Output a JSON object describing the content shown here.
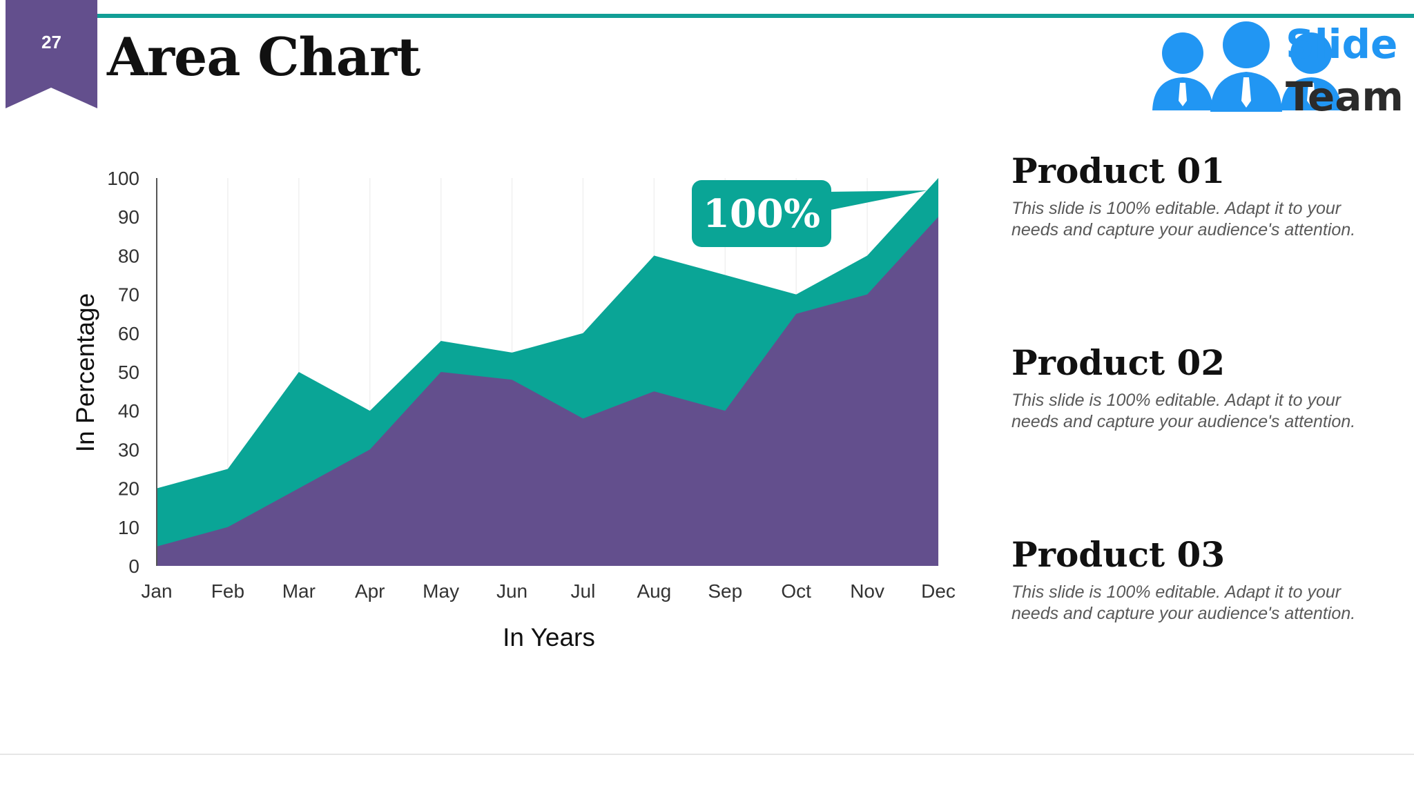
{
  "slide": {
    "number": "27",
    "title": "Area Chart"
  },
  "logo": {
    "line1": "Slide",
    "line2": "Team"
  },
  "colors": {
    "accent_teal": "#0aa596",
    "accent_purple": "#634f8d",
    "logo_blue": "#2196f3"
  },
  "chart_data": {
    "type": "area",
    "categories": [
      "Jan",
      "Feb",
      "Mar",
      "Apr",
      "May",
      "Jun",
      "Jul",
      "Aug",
      "Sep",
      "Oct",
      "Nov",
      "Dec"
    ],
    "series": [
      {
        "name": "",
        "color": "#0aa596",
        "values": [
          20,
          25,
          50,
          40,
          58,
          55,
          60,
          80,
          75,
          70,
          80,
          100
        ]
      },
      {
        "name": "",
        "color": "#634f8d",
        "values": [
          5,
          10,
          20,
          30,
          50,
          48,
          38,
          45,
          40,
          65,
          70,
          90
        ]
      }
    ],
    "xlabel": "In Years",
    "ylabel": "In Percentage",
    "ylim": [
      0,
      100
    ],
    "yticks": [
      0,
      10,
      20,
      30,
      40,
      50,
      60,
      70,
      80,
      90,
      100
    ],
    "grid": "vertical-light",
    "annotation": {
      "text": "100%",
      "category": "Dec",
      "value": 100
    }
  },
  "products": [
    {
      "title": "Product 01",
      "text": "This slide is 100% editable. Adapt it to your needs and capture your audience's attention."
    },
    {
      "title": "Product 02",
      "text": "This slide is 100% editable. Adapt it to your needs and capture your audience's attention."
    },
    {
      "title": "Product 03",
      "text": "This slide is 100% editable. Adapt it to your needs and capture your audience's attention."
    }
  ]
}
